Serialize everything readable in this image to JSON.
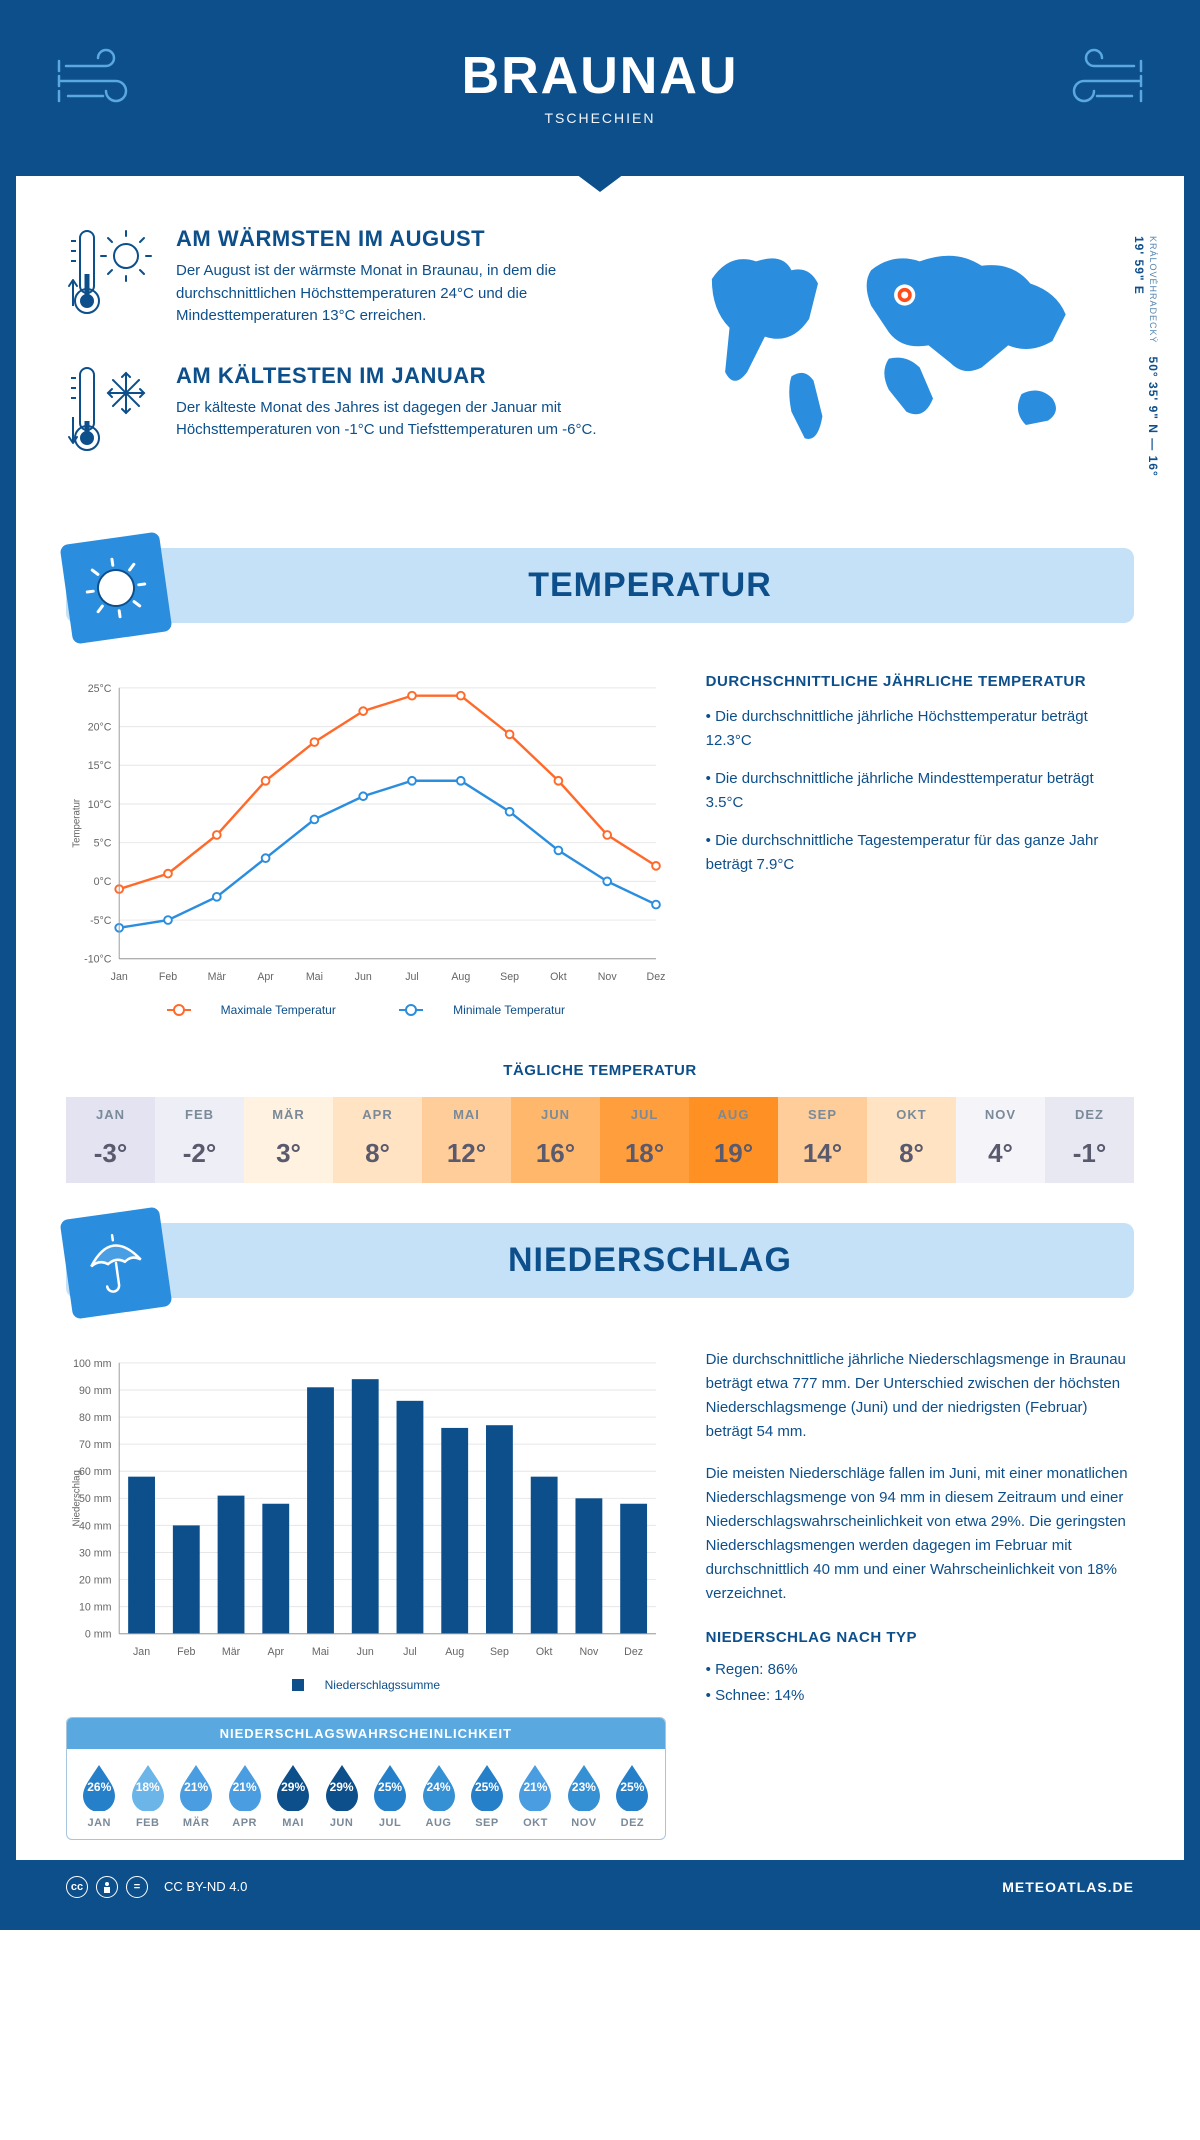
{
  "header": {
    "title": "BRAUNAU",
    "subtitle": "TSCHECHIEN"
  },
  "coords": {
    "lat": "50° 35' 9\" N",
    "lon": "16° 19' 59\" E",
    "region": "KRÁLOVÉHRADECKÝ"
  },
  "warmest": {
    "title": "AM WÄRMSTEN IM AUGUST",
    "text": "Der August ist der wärmste Monat in Braunau, in dem die durchschnittlichen Höchsttemperaturen 24°C und die Mindesttemperaturen 13°C erreichen."
  },
  "coldest": {
    "title": "AM KÄLTESTEN IM JANUAR",
    "text": "Der kälteste Monat des Jahres ist dagegen der Januar mit Höchsttemperaturen von -1°C und Tiefsttemperaturen um -6°C."
  },
  "temp_section": {
    "title": "TEMPERATUR"
  },
  "temp_chart": {
    "months": [
      "Jan",
      "Feb",
      "Mär",
      "Apr",
      "Mai",
      "Jun",
      "Jul",
      "Aug",
      "Sep",
      "Okt",
      "Nov",
      "Dez"
    ],
    "max_series": [
      -1,
      1,
      6,
      13,
      18,
      22,
      24,
      24,
      19,
      13,
      6,
      2
    ],
    "min_series": [
      -6,
      -5,
      -2,
      3,
      8,
      11,
      13,
      13,
      9,
      4,
      0,
      -3
    ],
    "ylim": [
      -10,
      25
    ],
    "ytick_step": 5,
    "max_color": "#ff6a2b",
    "min_color": "#2b8dde",
    "grid_color": "#e6e6e6",
    "axis_color": "#333",
    "y_label": "Temperatur",
    "legend_max": "Maximale Temperatur",
    "legend_min": "Minimale Temperatur"
  },
  "avg_stats": {
    "title": "DURCHSCHNITTLICHE JÄHRLICHE TEMPERATUR",
    "bullets": [
      "• Die durchschnittliche jährliche Höchsttemperatur beträgt 12.3°C",
      "• Die durchschnittliche jährliche Mindesttemperatur beträgt 3.5°C",
      "• Die durchschnittliche Tagestemperatur für das ganze Jahr beträgt 7.9°C"
    ]
  },
  "daily": {
    "title": "TÄGLICHE TEMPERATUR",
    "months": [
      "JAN",
      "FEB",
      "MÄR",
      "APR",
      "MAI",
      "JUN",
      "JUL",
      "AUG",
      "SEP",
      "OKT",
      "NOV",
      "DEZ"
    ],
    "values": [
      "-3°",
      "-2°",
      "3°",
      "8°",
      "12°",
      "16°",
      "18°",
      "19°",
      "14°",
      "8°",
      "4°",
      "-1°"
    ],
    "colors": [
      "#e3e3f2",
      "#eeeef7",
      "#fff2e0",
      "#ffe3c2",
      "#ffcd99",
      "#ffb86b",
      "#ff9e3d",
      "#ff9124",
      "#ffcd99",
      "#ffe3c2",
      "#f5f5f9",
      "#e8e8f3"
    ]
  },
  "precip_section": {
    "title": "NIEDERSCHLAG"
  },
  "precip_chart": {
    "months": [
      "Jan",
      "Feb",
      "Mär",
      "Apr",
      "Mai",
      "Jun",
      "Jul",
      "Aug",
      "Sep",
      "Okt",
      "Nov",
      "Dez"
    ],
    "values": [
      58,
      40,
      51,
      48,
      91,
      94,
      86,
      76,
      77,
      58,
      50,
      48
    ],
    "ylim": [
      0,
      100
    ],
    "ytick_step": 10,
    "bar_color": "#0d4f8b",
    "grid_color": "#e6e6e6",
    "y_label": "Niederschlag",
    "legend": "Niederschlagssumme"
  },
  "precip_text": {
    "p1": "Die durchschnittliche jährliche Niederschlagsmenge in Braunau beträgt etwa 777 mm. Der Unterschied zwischen der höchsten Niederschlagsmenge (Juni) und der niedrigsten (Februar) beträgt 54 mm.",
    "p2": "Die meisten Niederschläge fallen im Juni, mit einer monatlichen Niederschlagsmenge von 94 mm in diesem Zeitraum und einer Niederschlagswahrscheinlichkeit von etwa 29%. Die geringsten Niederschlagsmengen werden dagegen im Februar mit durchschnittlich 40 mm und einer Wahrscheinlichkeit von 18% verzeichnet.",
    "type_title": "NIEDERSCHLAG NACH TYP",
    "type_rain": "• Regen: 86%",
    "type_snow": "• Schnee: 14%"
  },
  "prob": {
    "title": "NIEDERSCHLAGSWAHRSCHEINLICHKEIT",
    "months": [
      "JAN",
      "FEB",
      "MÄR",
      "APR",
      "MAI",
      "JUN",
      "JUL",
      "AUG",
      "SEP",
      "OKT",
      "NOV",
      "DEZ"
    ],
    "pct": [
      "26%",
      "18%",
      "21%",
      "21%",
      "29%",
      "29%",
      "25%",
      "24%",
      "25%",
      "21%",
      "23%",
      "25%"
    ],
    "colors": [
      "#2680c9",
      "#6bb5e8",
      "#4a9de0",
      "#4a9de0",
      "#0d4f8b",
      "#0d4f8b",
      "#2680c9",
      "#3690d4",
      "#2680c9",
      "#4a9de0",
      "#3690d4",
      "#2680c9"
    ]
  },
  "footer": {
    "license": "CC BY-ND 4.0",
    "site": "METEOATLAS.DE"
  }
}
